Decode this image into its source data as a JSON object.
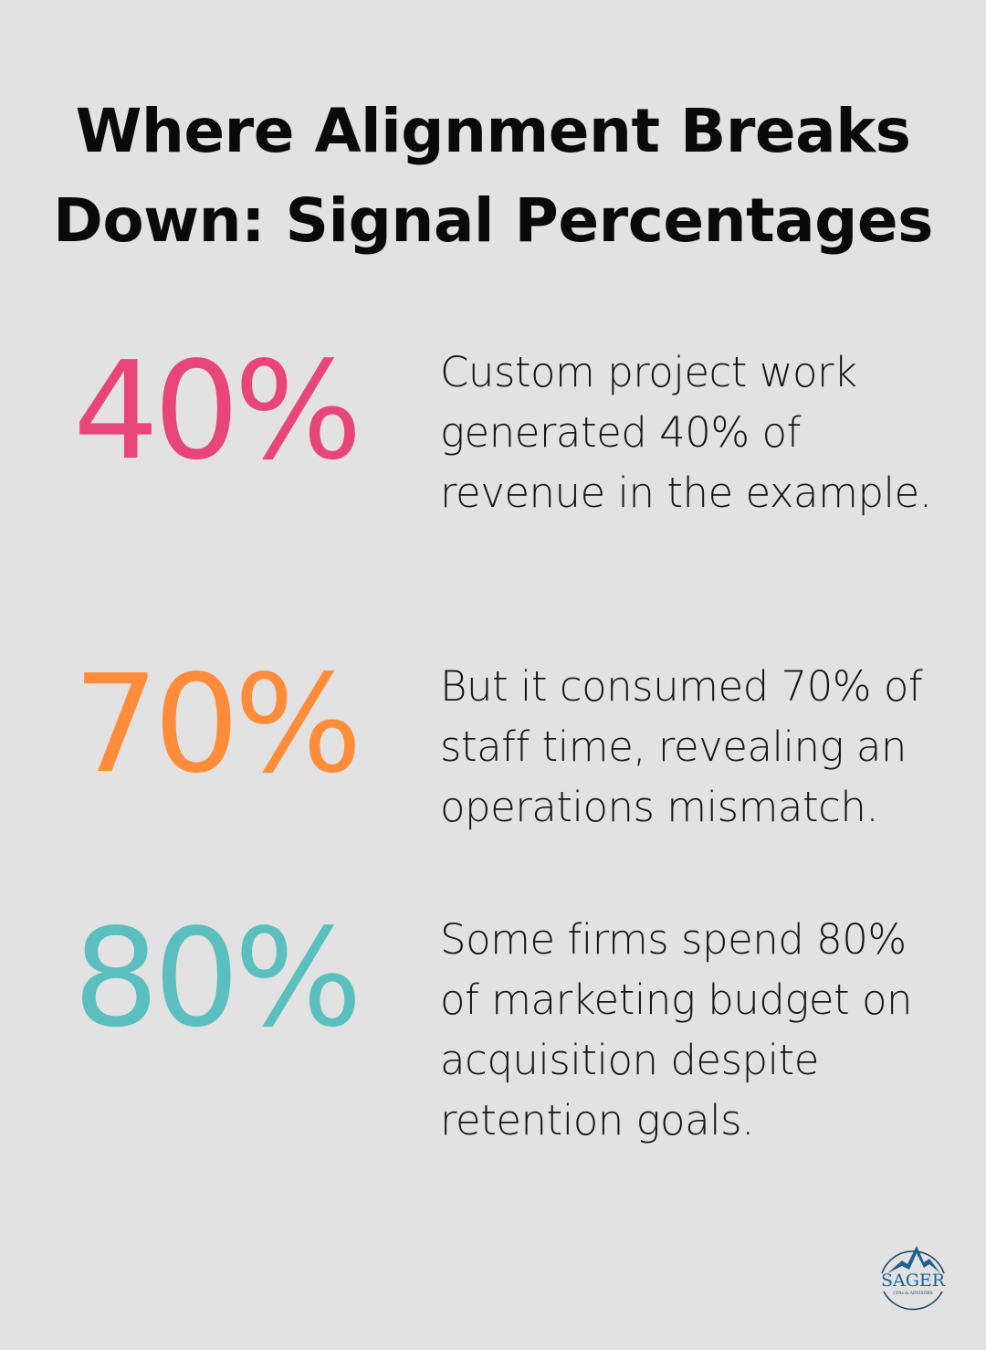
{
  "title": "Where Alignment Breaks Down: Signal Percentages",
  "stats": [
    {
      "value": "40%",
      "color": "#e8457a",
      "text": "Custom project work generated 40% of revenue in the example."
    },
    {
      "value": "70%",
      "color": "#ff8c3a",
      "text": "But it consumed 70% of staff time, revealing an operations mismatch."
    },
    {
      "value": "80%",
      "color": "#5bbfbf",
      "text": "Some firms spend 80% of marketing budget on acquisition despite retention goals."
    }
  ],
  "logo": {
    "name": "SAGER",
    "tagline": "CPAs & ADVISORS",
    "color": "#1f4f7a"
  }
}
